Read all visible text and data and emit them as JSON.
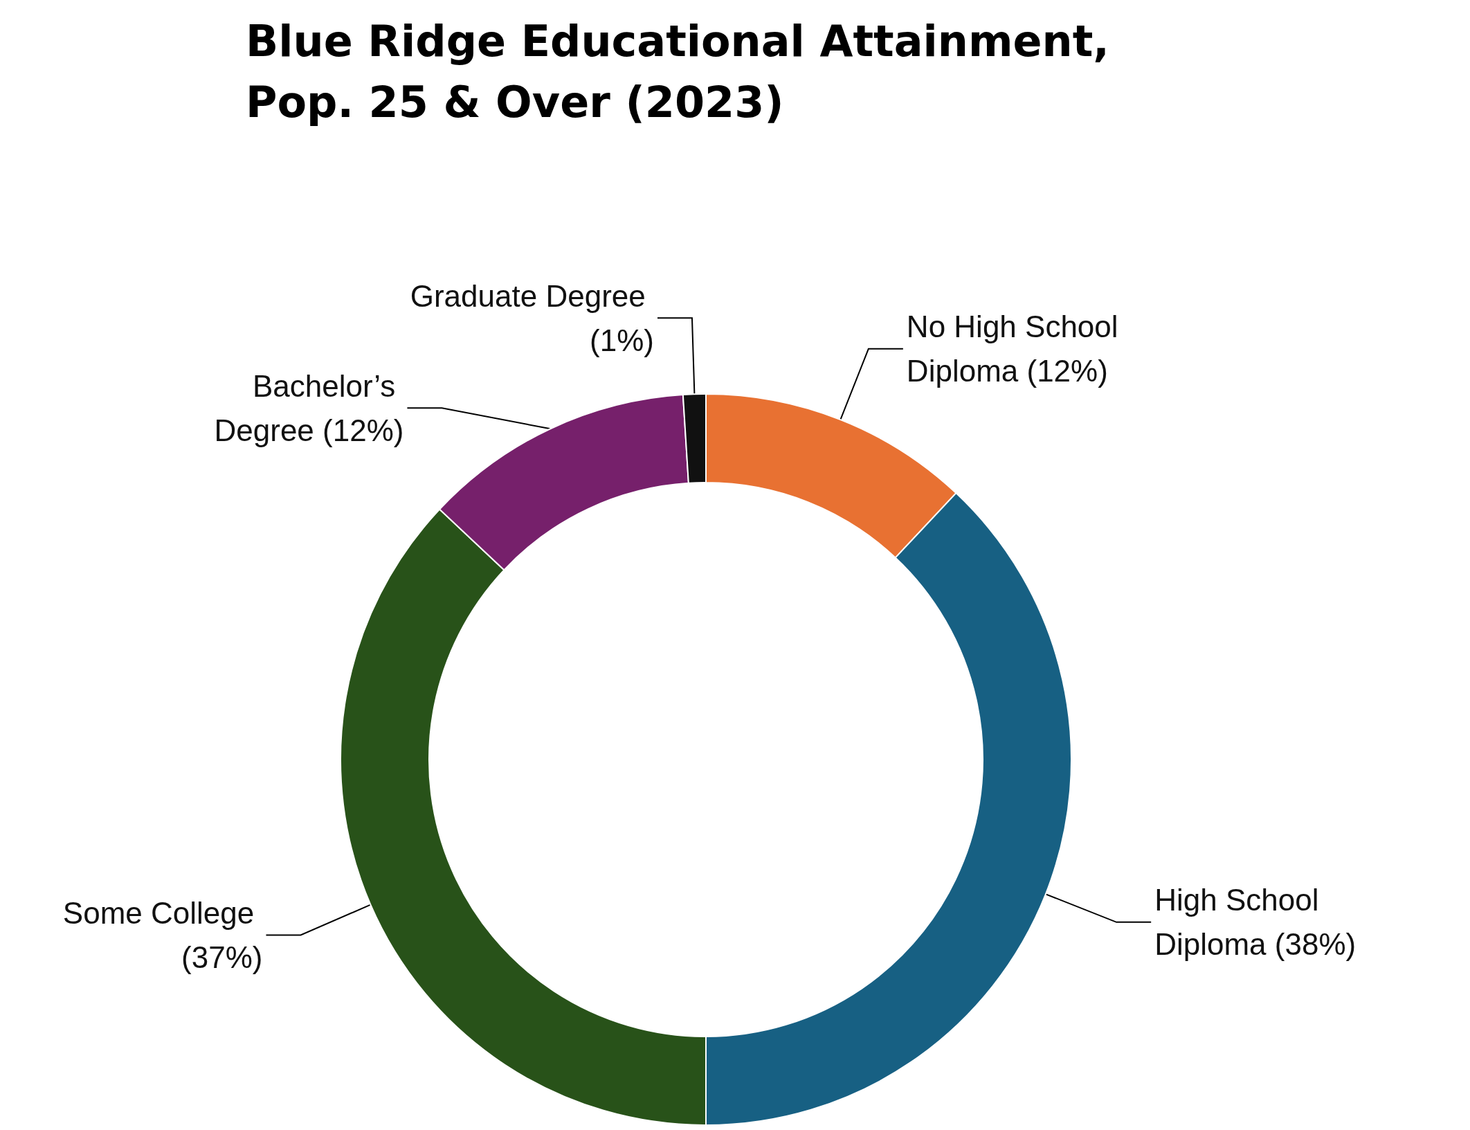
{
  "chart_data": {
    "type": "donut",
    "title": "Blue Ridge Educational Attainment,\nPop. 25 & Over (2023)",
    "categories": [
      "No High School Diploma (12%)",
      "High School Diploma (38%)",
      "Some College (37%)",
      "Bachelor’s Degree (12%)",
      "Graduate Degree (1%)"
    ],
    "values": [
      12,
      38,
      37,
      12,
      1
    ],
    "colors": [
      "#e87132",
      "#176083",
      "#285219",
      "#76206b",
      "#111111"
    ],
    "legend": false
  }
}
